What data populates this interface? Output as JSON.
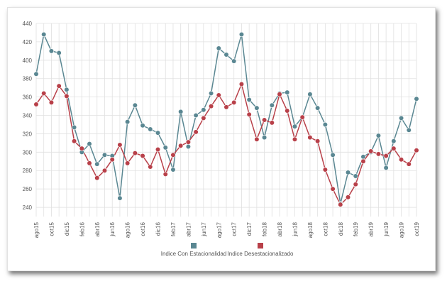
{
  "chart_data": {
    "type": "line",
    "title": "",
    "xlabel": "",
    "ylabel": "",
    "ylim": [
      230,
      440
    ],
    "yticks": [
      240,
      260,
      280,
      300,
      320,
      340,
      360,
      380,
      400,
      420,
      440
    ],
    "grid": true,
    "legend_position": "bottom",
    "categories": [
      "ago15",
      "sep15",
      "oct15",
      "nov15",
      "dic15",
      "ene16",
      "feb16",
      "mar16",
      "abr16",
      "may16",
      "jun16",
      "jul16",
      "ago16",
      "sep16",
      "oct16",
      "nov16",
      "dic16",
      "ene17",
      "feb17",
      "mar17",
      "abr17",
      "may17",
      "jun17",
      "jul17",
      "ago17",
      "sep17",
      "oct17",
      "nov17",
      "dic17",
      "ene18",
      "feb18",
      "mar18",
      "abr18",
      "may18",
      "jun18",
      "jul18",
      "ago18",
      "sep18",
      "oct18",
      "nov18",
      "dic18",
      "ene19",
      "feb19",
      "mar19",
      "abr19",
      "may19",
      "jun19",
      "jul19",
      "ago19",
      "sep19",
      "oct19"
    ],
    "tick_labels": [
      "ago15",
      "oct15",
      "dic15",
      "feb16",
      "abr16",
      "jun16",
      "ago16",
      "oct16",
      "dic16",
      "feb17",
      "abr17",
      "jun17",
      "ago17",
      "oct17",
      "dic17",
      "feb18",
      "abr18",
      "jun18",
      "ago18",
      "oct18",
      "dic18",
      "feb19",
      "abr19",
      "jun19",
      "ago19",
      "oct19"
    ],
    "series": [
      {
        "name": "Indice Con Estacionalidad",
        "color": "#5a8792",
        "values": [
          385,
          428,
          410,
          408,
          368,
          327,
          300,
          309,
          287,
          297,
          296,
          250,
          333,
          351,
          329,
          325,
          321,
          305,
          281,
          344,
          306,
          340,
          346,
          364,
          413,
          406,
          399,
          428,
          357,
          348,
          316,
          351,
          364,
          365,
          328,
          338,
          363,
          348,
          330,
          297,
          244,
          278,
          274,
          295,
          300,
          318,
          283,
          312,
          337,
          324,
          358
        ]
      },
      {
        "name": "Indice Desestacionalizado",
        "color": "#b84049",
        "values": [
          352,
          364,
          354,
          372,
          361,
          312,
          304,
          288,
          272,
          280,
          292,
          308,
          288,
          299,
          296,
          284,
          303,
          276,
          297,
          307,
          311,
          322,
          337,
          350,
          362,
          349,
          354,
          374,
          341,
          314,
          335,
          332,
          363,
          345,
          314,
          338,
          316,
          312,
          281,
          260,
          243,
          251,
          265,
          290,
          301,
          298,
          296,
          304,
          292,
          287,
          302
        ]
      }
    ]
  },
  "colors": {
    "grid": "#e0e0e0",
    "axis_text": "#555555"
  }
}
